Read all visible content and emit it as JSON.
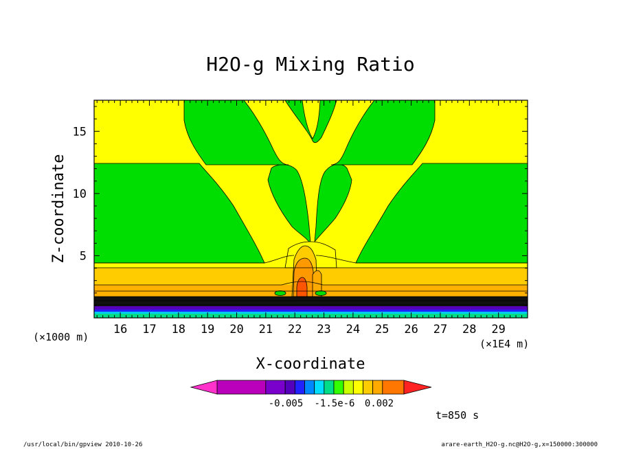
{
  "chart_data": {
    "type": "contour",
    "title": "H2O-g Mixing Ratio",
    "xlabel": "X-coordinate",
    "ylabel": "Z-coordinate",
    "x_unit_label": "(×1E4 m)",
    "y_unit_label": "(×1000 m)",
    "x_ticks": [
      "16",
      "17",
      "18",
      "19",
      "20",
      "21",
      "22",
      "23",
      "24",
      "25",
      "26",
      "27",
      "28",
      "29"
    ],
    "y_ticks": [
      "5",
      "10",
      "15"
    ],
    "xlim": [
      15.1,
      30
    ],
    "ylim": [
      0,
      17.5
    ],
    "colorbar": {
      "colors": [
        "#ff33cc",
        "#bb00bb",
        "#7a00cc",
        "#5500bb",
        "#2222ff",
        "#0088ff",
        "#00ddff",
        "#00dd88",
        "#33ff00",
        "#ccff00",
        "#ffff00",
        "#ffcc00",
        "#ffaa00",
        "#ff7700",
        "#ff2222"
      ],
      "tick_labels": [
        "-0.005",
        "-1.5e-6",
        "0.002"
      ]
    },
    "time_label": "t=850 s"
  },
  "footer": {
    "left": "/usr/local/bin/gpview  2010-10-26",
    "right": "arare-earth_H2O-g.nc@H2O-g,x=150000:300000"
  },
  "colors": {
    "yellow": "#ffff00",
    "green": "#00dd00",
    "gold": "#ffcc00",
    "orange": "#ff9900",
    "red": "#ff4400",
    "black": "#000000"
  }
}
